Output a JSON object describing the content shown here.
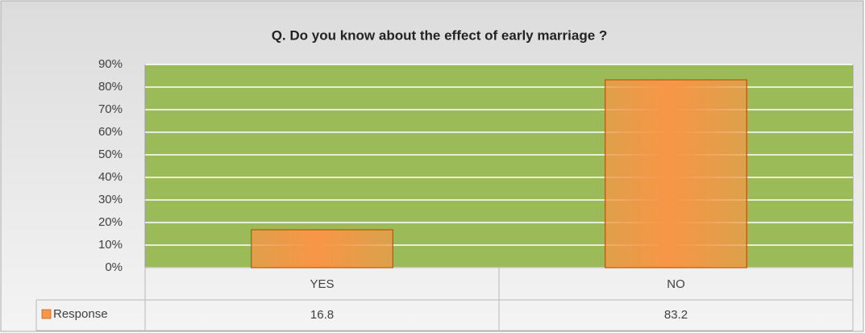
{
  "chart_data": {
    "type": "bar",
    "title": "Q. Do you know about the effect of early marriage ?",
    "categories": [
      "YES",
      "NO"
    ],
    "series": [
      {
        "name": "Response",
        "color": "#f79646",
        "values": [
          16.8,
          83.2
        ]
      }
    ],
    "ylim": [
      0,
      90
    ],
    "yticks": [
      {
        "value": 0,
        "label": "0%"
      },
      {
        "value": 10,
        "label": "10%"
      },
      {
        "value": 20,
        "label": "20%"
      },
      {
        "value": 30,
        "label": "30%"
      },
      {
        "value": 40,
        "label": "40%"
      },
      {
        "value": 50,
        "label": "50%"
      },
      {
        "value": 60,
        "label": "60%"
      },
      {
        "value": 70,
        "label": "70%"
      },
      {
        "value": 80,
        "label": "80%"
      },
      {
        "value": 90,
        "label": "90%"
      }
    ],
    "grid": true,
    "plot_background": "#9bbb59"
  }
}
